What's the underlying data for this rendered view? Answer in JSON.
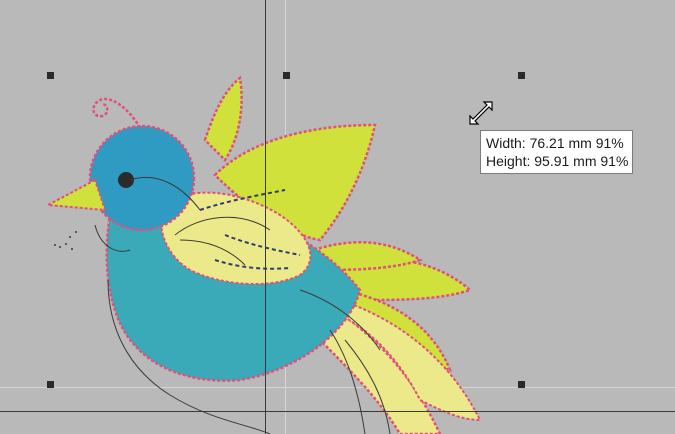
{
  "colors": {
    "canvas_bg": "#b9b9b9",
    "guide_dark": "#3a3a3a",
    "guide_light": "#d6d6d6",
    "handle": "#2a2a2a",
    "thread_blue": "#2f9bc2",
    "thread_teal": "#3aa9b8",
    "thread_yellow": "#ece98a",
    "thread_lime": "#cfe13a",
    "thread_pink": "#e0507a",
    "outline": "#3a3a3a"
  },
  "tooltip": {
    "width_line": "Width: 76.21 mm 91%",
    "height_line": "Height: 95.91 mm 91%"
  },
  "cursor": {
    "icon": "diagonal-resize-cursor-icon"
  },
  "selection": {
    "handle_icon": "resize-handle"
  },
  "design": {
    "icon": "embroidered-bird-design"
  }
}
